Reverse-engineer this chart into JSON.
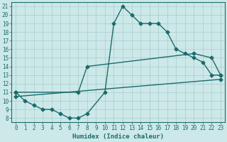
{
  "xlabel": "Humidex (Indice chaleur)",
  "background_color": "#cde8e8",
  "line_color": "#1a6b6b",
  "grid_color": "#a8cccc",
  "xlim": [
    -0.5,
    23.5
  ],
  "ylim": [
    7.5,
    21.5
  ],
  "xticks": [
    0,
    1,
    2,
    3,
    4,
    5,
    6,
    7,
    8,
    9,
    10,
    11,
    12,
    13,
    14,
    15,
    16,
    17,
    18,
    19,
    20,
    21,
    22,
    23
  ],
  "yticks": [
    8,
    9,
    10,
    11,
    12,
    13,
    14,
    15,
    16,
    17,
    18,
    19,
    20,
    21
  ],
  "curve1_x": [
    0,
    1,
    2,
    3,
    4,
    5,
    6,
    7,
    8,
    10,
    11,
    12,
    13,
    14,
    15,
    16,
    17,
    18,
    19,
    20,
    21,
    22,
    23
  ],
  "curve1_y": [
    11,
    10,
    9.5,
    9,
    9,
    8.5,
    8,
    8,
    8.5,
    11,
    19,
    21,
    20,
    19,
    19,
    19,
    18,
    16,
    15.5,
    15,
    14.5,
    13,
    13
  ],
  "curve2_x": [
    0,
    7,
    8,
    20,
    22,
    23
  ],
  "curve2_y": [
    11,
    11,
    14,
    15.5,
    15,
    13
  ],
  "curve3_x": [
    0,
    23
  ],
  "curve3_y": [
    10.5,
    12.5
  ],
  "marker": "D",
  "markersize": 2.5,
  "linewidth": 1.0,
  "tick_fontsize": 5.5,
  "xlabel_fontsize": 6.5
}
